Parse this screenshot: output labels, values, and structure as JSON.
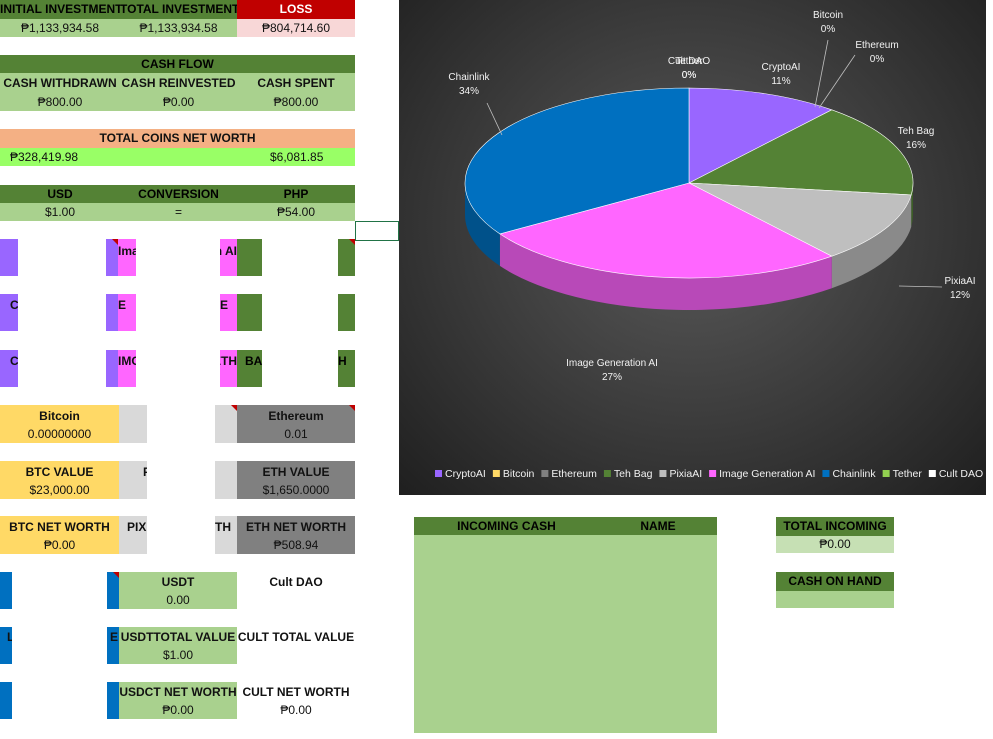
{
  "summary": {
    "initial_investment_label": "INITIAL INVESTMENT",
    "initial_investment_value": "₱1,133,934.58",
    "total_investment_label": "TOTAL INVESTMENT",
    "total_investment_value": "₱1,133,934.58",
    "loss_label": "LOSS",
    "loss_value": "₱804,714.60"
  },
  "cash_flow": {
    "title": "CASH FLOW",
    "withdrawn_label": "CASH WITHDRAWN",
    "reinvested_label": "CASH REINVESTED",
    "spent_label": "CASH SPENT",
    "withdrawn_value": "₱800.00",
    "reinvested_value": "₱0.00",
    "spent_value": "₱800.00"
  },
  "net_worth": {
    "title": "TOTAL COINS NET WORTH",
    "php_value": "₱328,419.98",
    "usd_value": "$6,081.85"
  },
  "conversion": {
    "usd_label": "USD",
    "conversion_label": "CONVERSION",
    "php_label": "PHP",
    "usd_value": "$1.00",
    "equals": "=",
    "php_value": "₱54.00"
  },
  "fragments": {
    "r1_b": "Ima",
    "r1_c": "n AI",
    "r2_a": "C",
    "r2_b": "E",
    "r2_c": "E",
    "r3_a": "C",
    "r3_b": "IMG",
    "r3_c": "ETH",
    "r3_d": "BA",
    "r3_e": "H",
    "b1_a": "L",
    "b1_b": "E"
  },
  "coins": {
    "bitcoin_label": "Bitcoin",
    "bitcoin_value": "0.00000000",
    "ethereum_label": "Ethereum",
    "ethereum_value": "0.01",
    "btc_value_label": "BTC VALUE",
    "btc_value": "$23,000.00",
    "eth_value_label": "ETH VALUE",
    "eth_value": "$1,650.0000",
    "btc_net_label": "BTC NET WORTH",
    "btc_net_value": "₱0.00",
    "eth_net_label": "ETH NET WORTH",
    "eth_net_value": "₱508.94",
    "pixia_partial_1": "P",
    "pixia_partial_2": "PIXI",
    "pixia_partial_3": "TH",
    "usdt_label": "USDT",
    "usdt_value": "0.00",
    "usdt_total_label": "USDTTOTAL VALUE",
    "usdt_total_value": "$1.00",
    "usdt_net_label": "USDCT NET WORTH",
    "usdt_net_value": "₱0.00",
    "cult_label": "Cult DAO",
    "cult_total_label": "CULT TOTAL VALUE",
    "cult_net_label": "CULT NET WORTH",
    "cult_net_value": "₱0.00"
  },
  "incoming": {
    "incoming_cash_label": "INCOMING CASH",
    "name_label": "NAME",
    "total_incoming_label": "TOTAL INCOMING",
    "total_incoming_value": "₱0.00",
    "cash_on_hand_label": "CASH ON HAND"
  },
  "chart_data": {
    "type": "pie",
    "title": "",
    "categories": [
      "CryptoAI",
      "Bitcoin",
      "Ethereum",
      "Teh Bag",
      "PixiaAI",
      "Image Generation AI",
      "Chainlink",
      "Tether",
      "Cult DAO"
    ],
    "values": [
      11,
      0,
      0,
      16,
      12,
      27,
      34,
      0,
      0
    ],
    "point_labels": [
      {
        "name": "CryptoAI",
        "pct": "11%"
      },
      {
        "name": "Bitcoin",
        "pct": "0%"
      },
      {
        "name": "Ethereum",
        "pct": "0%"
      },
      {
        "name": "Teh Bag",
        "pct": "16%"
      },
      {
        "name": "PixiaAI",
        "pct": "12%"
      },
      {
        "name": "Image Generation AI",
        "pct": "27%"
      },
      {
        "name": "Chainlink",
        "pct": "34%"
      },
      {
        "name": "Tether",
        "pct": "0%"
      },
      {
        "name": "Cult DAO",
        "pct": "0%"
      }
    ],
    "colors": [
      "#9966ff",
      "#ffd966",
      "#808080",
      "#548235",
      "#bfbfbf",
      "#ff66ff",
      "#0070c0",
      "#92d050",
      "#ffffff"
    ],
    "legend_position": "bottom"
  }
}
